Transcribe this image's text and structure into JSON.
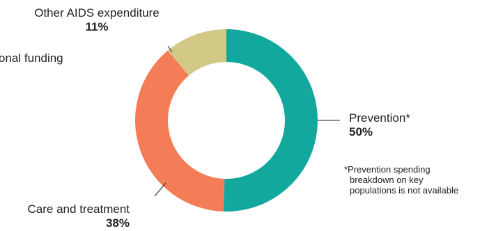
{
  "chart_data": {
    "type": "pie",
    "donut": true,
    "title": "",
    "total_label": "onal funding",
    "slices": [
      {
        "label": "Prevention*",
        "value": 50,
        "value_label": "50%",
        "color": "#13a89e"
      },
      {
        "label": "Care and treatment",
        "value": 38,
        "value_label": "38%",
        "color": "#f47d57"
      },
      {
        "label": "Other AIDS expenditure",
        "value": 11,
        "value_label": "11%",
        "color": "#d2c986"
      }
    ],
    "footnote": {
      "lines": [
        "*Prevention spending",
        "breakdown on key",
        "populations is not available"
      ]
    }
  }
}
